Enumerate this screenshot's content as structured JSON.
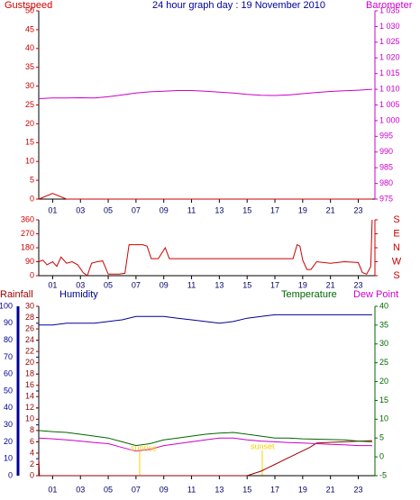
{
  "chart_data": [
    {
      "type": "line",
      "title": "24 hour graph day : 19 November 2010",
      "xlim": [
        0,
        24.2
      ],
      "xticks": [
        {
          "value": 1,
          "label": "01"
        },
        {
          "value": 3,
          "label": "03"
        },
        {
          "value": 5,
          "label": "05"
        },
        {
          "value": 7,
          "label": "07"
        },
        {
          "value": 9,
          "label": "09"
        },
        {
          "value": 11,
          "label": "11"
        },
        {
          "value": 13,
          "label": "13"
        },
        {
          "value": 15,
          "label": "15"
        },
        {
          "value": 17,
          "label": "17"
        },
        {
          "value": 19,
          "label": "19"
        },
        {
          "value": 21,
          "label": "21"
        },
        {
          "value": 23,
          "label": "23"
        }
      ],
      "ylim": [
        0,
        50
      ],
      "yticks": [
        0,
        5,
        10,
        15,
        20,
        25,
        30,
        35,
        40,
        45,
        50
      ],
      "y2lim": [
        975,
        1035
      ],
      "y2ticks": [
        975,
        980,
        985,
        990,
        995,
        {
          "value": 1000,
          "label": "1 000"
        },
        {
          "value": 1005,
          "label": "1 005"
        },
        {
          "value": 1010,
          "label": "1 010"
        },
        {
          "value": 1015,
          "label": "1 015"
        },
        {
          "value": 1020,
          "label": "1 020"
        },
        {
          "value": 1025,
          "label": "1 025"
        },
        {
          "value": 1030,
          "label": "1 030"
        },
        {
          "value": 1035,
          "label": "1 035"
        }
      ],
      "x": [
        0,
        1,
        2,
        3,
        4,
        5,
        6,
        7,
        8,
        9,
        10,
        11,
        12,
        13,
        14,
        15,
        16,
        17,
        18,
        19,
        20,
        21,
        22,
        23,
        24
      ],
      "series": [
        {
          "name": "Gustspeed",
          "color": "#cc0000",
          "axis": "y",
          "values": [
            0,
            1.5,
            0,
            0,
            0,
            0,
            0,
            0,
            0,
            0,
            0,
            0,
            0,
            0,
            0,
            0,
            0,
            0,
            0,
            0,
            0,
            0,
            0,
            0,
            0
          ]
        },
        {
          "name": "Barometer",
          "color": "#cc00cc",
          "axis": "y2",
          "values": [
            1007,
            1007.2,
            1007.2,
            1007.3,
            1007.2,
            1007.6,
            1008.2,
            1008.8,
            1009.2,
            1009.4,
            1009.6,
            1009.6,
            1009.4,
            1009.1,
            1008.8,
            1008.4,
            1008.1,
            1008,
            1008.2,
            1008.6,
            1009,
            1009.3,
            1009.5,
            1009.7,
            1010
          ]
        }
      ]
    },
    {
      "type": "line",
      "xlim": [
        0,
        24.2
      ],
      "xticks": [
        {
          "value": 1,
          "label": "01"
        },
        {
          "value": 3,
          "label": "03"
        },
        {
          "value": 5,
          "label": "05"
        },
        {
          "value": 7,
          "label": "07"
        },
        {
          "value": 9,
          "label": "09"
        },
        {
          "value": 11,
          "label": "11"
        },
        {
          "value": 13,
          "label": "13"
        },
        {
          "value": 15,
          "label": "15"
        },
        {
          "value": 17,
          "label": "17"
        },
        {
          "value": 19,
          "label": "19"
        },
        {
          "value": 21,
          "label": "21"
        },
        {
          "value": 23,
          "label": "23"
        }
      ],
      "ylim": [
        0,
        360
      ],
      "yticks": [
        0,
        90,
        180,
        270,
        360
      ],
      "y2lim": [
        0,
        360
      ],
      "y2ticks": [
        {
          "value": 0,
          "label": "S"
        },
        {
          "value": 90,
          "label": "W"
        },
        {
          "value": 180,
          "label": "N"
        },
        {
          "value": 270,
          "label": "E"
        },
        {
          "value": 360,
          "label": "S"
        }
      ],
      "x": [
        0,
        0.3,
        0.6,
        1,
        1.3,
        1.6,
        2,
        2.4,
        2.8,
        3.2,
        3.5,
        3.8,
        4.2,
        4.6,
        5,
        5.4,
        5.8,
        6.2,
        6.5,
        7.5,
        7.8,
        8.1,
        8.6,
        9.1,
        9.4,
        9.8,
        11,
        14,
        17,
        18.3,
        18.6,
        18.8,
        19,
        19.3,
        19.6,
        20,
        21,
        22,
        23,
        23.3,
        23.6,
        23.9,
        24
      ],
      "series": [
        {
          "color": "#cc0000",
          "axis": "y",
          "values": [
            90,
            100,
            70,
            90,
            60,
            120,
            80,
            90,
            70,
            20,
            0,
            80,
            90,
            95,
            10,
            10,
            10,
            15,
            200,
            200,
            190,
            110,
            110,
            180,
            110,
            110,
            110,
            110,
            110,
            110,
            200,
            190,
            100,
            40,
            40,
            90,
            80,
            90,
            85,
            20,
            10,
            60,
            360
          ]
        }
      ]
    },
    {
      "type": "line",
      "xlim": [
        0,
        24.2
      ],
      "xticks": [
        {
          "value": 1,
          "label": "01"
        },
        {
          "value": 3,
          "label": "03"
        },
        {
          "value": 5,
          "label": "05"
        },
        {
          "value": 7,
          "label": "07"
        },
        {
          "value": 9,
          "label": "09"
        },
        {
          "value": 11,
          "label": "11"
        },
        {
          "value": 13,
          "label": "13"
        },
        {
          "value": 15,
          "label": "15"
        },
        {
          "value": 17,
          "label": "17"
        },
        {
          "value": 19,
          "label": "19"
        },
        {
          "value": 21,
          "label": "21"
        },
        {
          "value": 23,
          "label": "23"
        }
      ],
      "ylim": [
        0,
        100
      ],
      "yticks": [
        0,
        10,
        20,
        30,
        40,
        50,
        60,
        70,
        80,
        90,
        100
      ],
      "y3lim": [
        0,
        30
      ],
      "y3ticks": [
        0,
        2,
        4,
        6,
        8,
        10,
        12,
        14,
        16,
        18,
        20,
        22,
        24,
        26,
        28,
        30
      ],
      "y2lim": [
        -5,
        40
      ],
      "y2ticks": [
        -5,
        0,
        5,
        10,
        15,
        20,
        25,
        30,
        35,
        40
      ],
      "annotations": [
        "sunrise",
        "sunset"
      ],
      "series": [
        {
          "name": "Rainfall",
          "color": "#990000",
          "axis": "y3",
          "x": [
            0,
            0.05,
            15,
            15.5,
            16,
            16.5,
            17,
            17.5,
            18,
            18.5,
            19,
            19.5,
            20,
            22,
            24
          ],
          "values": [
            3,
            0,
            0,
            0.4,
            0.8,
            1.4,
            2,
            2.6,
            3.2,
            3.8,
            4.4,
            5,
            5.8,
            6,
            6.2
          ]
        },
        {
          "name": "Humidity",
          "color": "#000099",
          "axis": "y",
          "x": [
            0,
            1,
            2,
            3,
            4,
            5,
            6,
            7,
            8,
            9,
            10,
            11,
            12,
            13,
            14,
            15,
            16,
            17,
            18,
            19,
            20,
            21,
            22,
            23,
            24
          ],
          "values": [
            89,
            89,
            90,
            90,
            90,
            91,
            92,
            94,
            94,
            94,
            93,
            92,
            91,
            90,
            91,
            93,
            94,
            95,
            95,
            95,
            95,
            95,
            95,
            95,
            95
          ]
        },
        {
          "name": "Temperature",
          "color": "#006600",
          "axis": "y2",
          "x": [
            0,
            1,
            2,
            3,
            4,
            5,
            6,
            7,
            8,
            9,
            10,
            11,
            12,
            13,
            14,
            15,
            16,
            17,
            18,
            19,
            20,
            21,
            22,
            23,
            24
          ],
          "values": [
            7,
            6.7,
            6.5,
            6,
            5.5,
            5,
            4,
            3,
            3.5,
            4.5,
            5,
            5.5,
            6,
            6.3,
            6.5,
            6,
            5.5,
            5,
            5,
            4.8,
            4.7,
            4.6,
            4.5,
            4.2,
            4
          ]
        },
        {
          "name": "Dew Point",
          "color": "#cc00cc",
          "axis": "y2",
          "x": [
            0,
            1,
            2,
            3,
            4,
            5,
            6,
            7,
            8,
            9,
            10,
            11,
            12,
            13,
            14,
            15,
            16,
            17,
            18,
            19,
            20,
            21,
            22,
            23,
            24
          ],
          "values": [
            5,
            4.8,
            4.5,
            4.2,
            3.8,
            3.5,
            2.5,
            1.5,
            2,
            3,
            3.5,
            4,
            4.5,
            5,
            5,
            4.5,
            4.2,
            4,
            3.8,
            3.7,
            3.5,
            3.3,
            3.2,
            3,
            3
          ]
        }
      ]
    }
  ]
}
